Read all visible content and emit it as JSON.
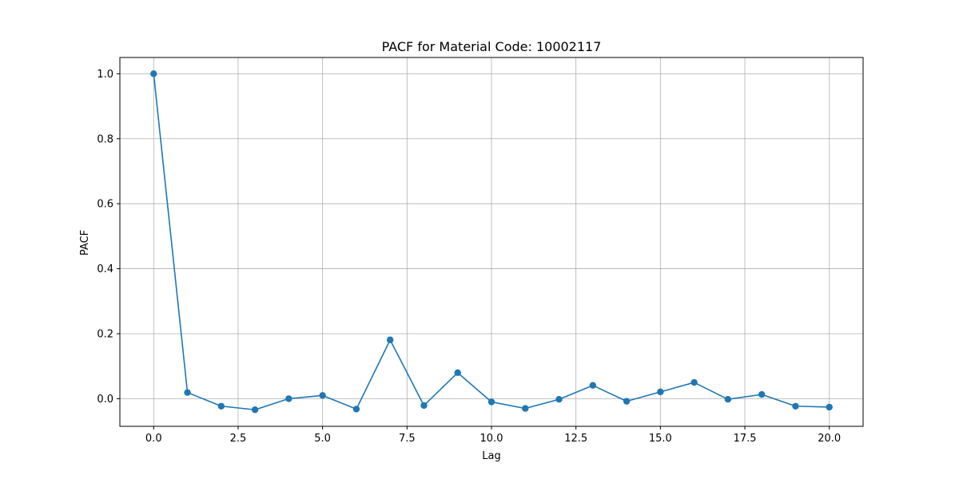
{
  "chart_data": {
    "type": "line",
    "title": "PACF for Material Code: 10002117",
    "xlabel": "Lag",
    "ylabel": "PACF",
    "xlim": [
      -1.0,
      21.0
    ],
    "ylim": [
      -0.085,
      1.05
    ],
    "xticks": [
      0.0,
      2.5,
      5.0,
      7.5,
      10.0,
      12.5,
      15.0,
      17.5,
      20.0
    ],
    "xtick_labels": [
      "0.0",
      "2.5",
      "5.0",
      "7.5",
      "10.0",
      "12.5",
      "15.0",
      "17.5",
      "20.0"
    ],
    "yticks": [
      0.0,
      0.2,
      0.4,
      0.6,
      0.8,
      1.0
    ],
    "ytick_labels": [
      "0.0",
      "0.2",
      "0.4",
      "0.6",
      "0.8",
      "1.0"
    ],
    "grid": true,
    "series": [
      {
        "color": "#1f77b4",
        "marker": "circle",
        "x": [
          0,
          1,
          2,
          3,
          4,
          5,
          6,
          7,
          8,
          9,
          10,
          11,
          12,
          13,
          14,
          15,
          16,
          17,
          18,
          19,
          20
        ],
        "y": [
          1.0,
          0.019,
          -0.023,
          -0.034,
          0.0,
          0.01,
          -0.032,
          0.181,
          -0.021,
          0.08,
          -0.01,
          -0.03,
          -0.002,
          0.041,
          -0.008,
          0.021,
          0.05,
          -0.002,
          0.013,
          -0.023,
          -0.026
        ]
      }
    ]
  }
}
